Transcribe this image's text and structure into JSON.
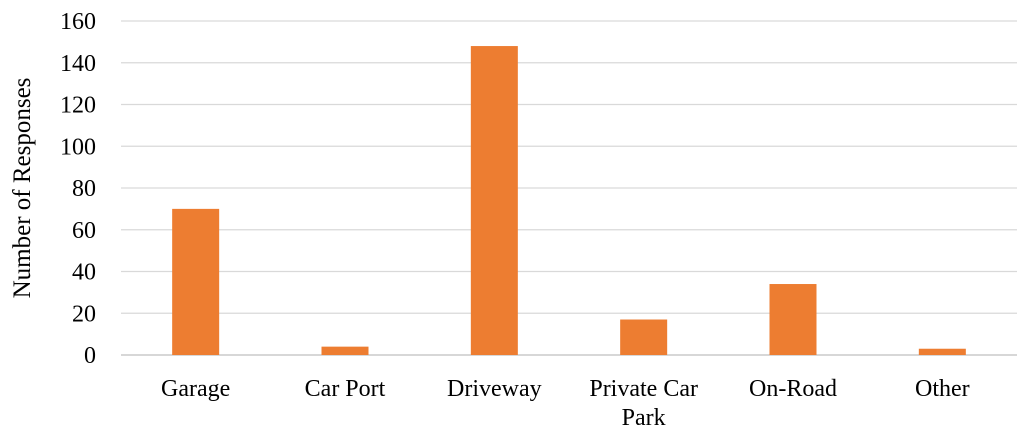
{
  "chart_data": {
    "type": "bar",
    "title": "",
    "xlabel": "",
    "ylabel": "Number of Responses",
    "categories": [
      [
        "Garage"
      ],
      [
        "Car Port"
      ],
      [
        "Driveway"
      ],
      [
        "Private Car",
        "Park"
      ],
      [
        "On-Road"
      ],
      [
        "Other"
      ]
    ],
    "values": [
      70,
      4,
      148,
      17,
      34,
      3
    ],
    "ylim": [
      0,
      160
    ],
    "yticks": [
      "0",
      "20",
      "40",
      "60",
      "80",
      "100",
      "120",
      "140",
      "160"
    ],
    "grid": true,
    "legend": "none",
    "bar_color": "#ED7D31",
    "grid_color": "#D9D9D9"
  }
}
